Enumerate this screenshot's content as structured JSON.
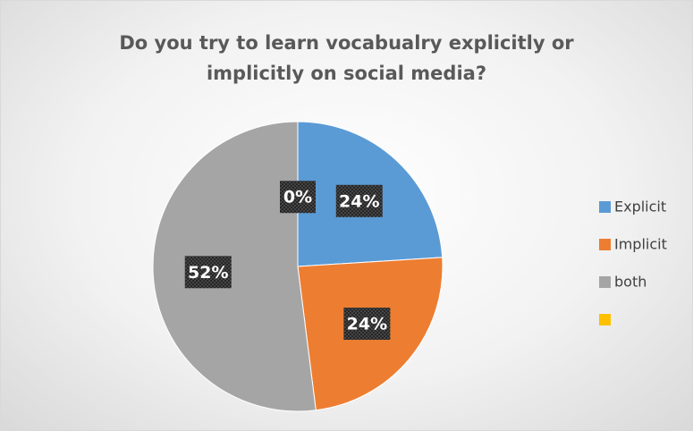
{
  "chart_data": {
    "type": "pie",
    "title": "Do you try to learn vocabualry explicitly or implicitly on social media?",
    "categories": [
      "Explicit",
      "Implicit",
      "both",
      null
    ],
    "values": [
      24,
      24,
      52,
      0
    ],
    "value_labels": [
      "24%",
      "24%",
      "52%",
      "0%"
    ],
    "colors": [
      "#5b9bd5",
      "#ed7d31",
      "#a5a5a5",
      "#ffc000"
    ],
    "legend": "right"
  }
}
